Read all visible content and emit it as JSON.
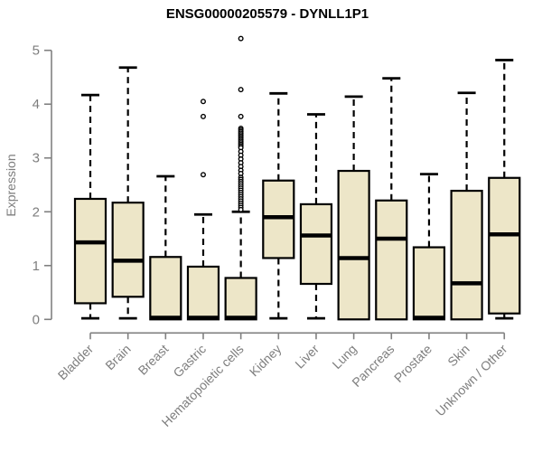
{
  "chart_data": {
    "type": "boxplot",
    "title": "ENSG00000205579 - DYNLL1P1",
    "xlabel": "",
    "ylabel": "Expression",
    "ylim": [
      0,
      5
    ],
    "yticks": [
      0,
      1,
      2,
      3,
      4,
      5
    ],
    "grid": false,
    "legend": false,
    "colors": {
      "box_fill": "#EDE6C8",
      "box_stroke": "#000000",
      "median_stroke": "#000000",
      "whisker_stroke": "#000000",
      "outlier_stroke": "#000000",
      "axis": "#808080",
      "tick_text": "#7E7E7E",
      "title_text": "#000000",
      "background": "#FFFFFF"
    },
    "categories": [
      "Bladder",
      "Brain",
      "Breast",
      "Gastric",
      "Hematopoietic cells",
      "Kidney",
      "Liver",
      "Lung",
      "Pancreas",
      "Prostate",
      "Skin",
      "Unknown / Other"
    ],
    "series": [
      {
        "name": "Bladder",
        "whisker_low": 0.02,
        "q1": 0.3,
        "median": 1.43,
        "q3": 2.24,
        "whisker_high": 4.17,
        "outliers": []
      },
      {
        "name": "Brain",
        "whisker_low": 0.02,
        "q1": 0.42,
        "median": 1.09,
        "q3": 2.17,
        "whisker_high": 4.68,
        "outliers": []
      },
      {
        "name": "Breast",
        "whisker_low": 0.0,
        "q1": 0.0,
        "median": 0.03,
        "q3": 1.16,
        "whisker_high": 2.66,
        "outliers": []
      },
      {
        "name": "Gastric",
        "whisker_low": 0.0,
        "q1": 0.0,
        "median": 0.03,
        "q3": 0.98,
        "whisker_high": 1.95,
        "outliers": [
          4.05,
          3.77,
          2.69
        ]
      },
      {
        "name": "Hematopoietic cells",
        "whisker_low": 0.0,
        "q1": 0.0,
        "median": 0.03,
        "q3": 0.77,
        "whisker_high": 2.0,
        "outliers": [
          5.22,
          4.27,
          3.77,
          3.55,
          3.52,
          3.49,
          3.46,
          3.43,
          3.4,
          3.37,
          3.34,
          3.31,
          3.28,
          3.25,
          3.22,
          3.19,
          3.12,
          3.05,
          2.98,
          2.91,
          2.84,
          2.77,
          2.71,
          2.64,
          2.6,
          2.56,
          2.52,
          2.48,
          2.44,
          2.4,
          2.36,
          2.32,
          2.28,
          2.24,
          2.2,
          2.16,
          2.12,
          2.08,
          2.04
        ]
      },
      {
        "name": "Kidney",
        "whisker_low": 0.02,
        "q1": 1.14,
        "median": 1.9,
        "q3": 2.58,
        "whisker_high": 4.2,
        "outliers": []
      },
      {
        "name": "Liver",
        "whisker_low": 0.02,
        "q1": 0.66,
        "median": 1.56,
        "q3": 2.14,
        "whisker_high": 3.81,
        "outliers": []
      },
      {
        "name": "Lung",
        "whisker_low": 0.0,
        "q1": 0.0,
        "median": 1.14,
        "q3": 2.76,
        "whisker_high": 4.14,
        "outliers": []
      },
      {
        "name": "Pancreas",
        "whisker_low": 0.0,
        "q1": 0.0,
        "median": 1.5,
        "q3": 2.21,
        "whisker_high": 4.48,
        "outliers": []
      },
      {
        "name": "Prostate",
        "whisker_low": 0.0,
        "q1": 0.0,
        "median": 0.03,
        "q3": 1.34,
        "whisker_high": 2.7,
        "outliers": []
      },
      {
        "name": "Skin",
        "whisker_low": 0.0,
        "q1": 0.0,
        "median": 0.67,
        "q3": 2.39,
        "whisker_high": 4.21,
        "outliers": []
      },
      {
        "name": "Unknown / Other",
        "whisker_low": 0.02,
        "q1": 0.11,
        "median": 1.58,
        "q3": 2.63,
        "whisker_high": 4.82,
        "outliers": []
      }
    ]
  }
}
